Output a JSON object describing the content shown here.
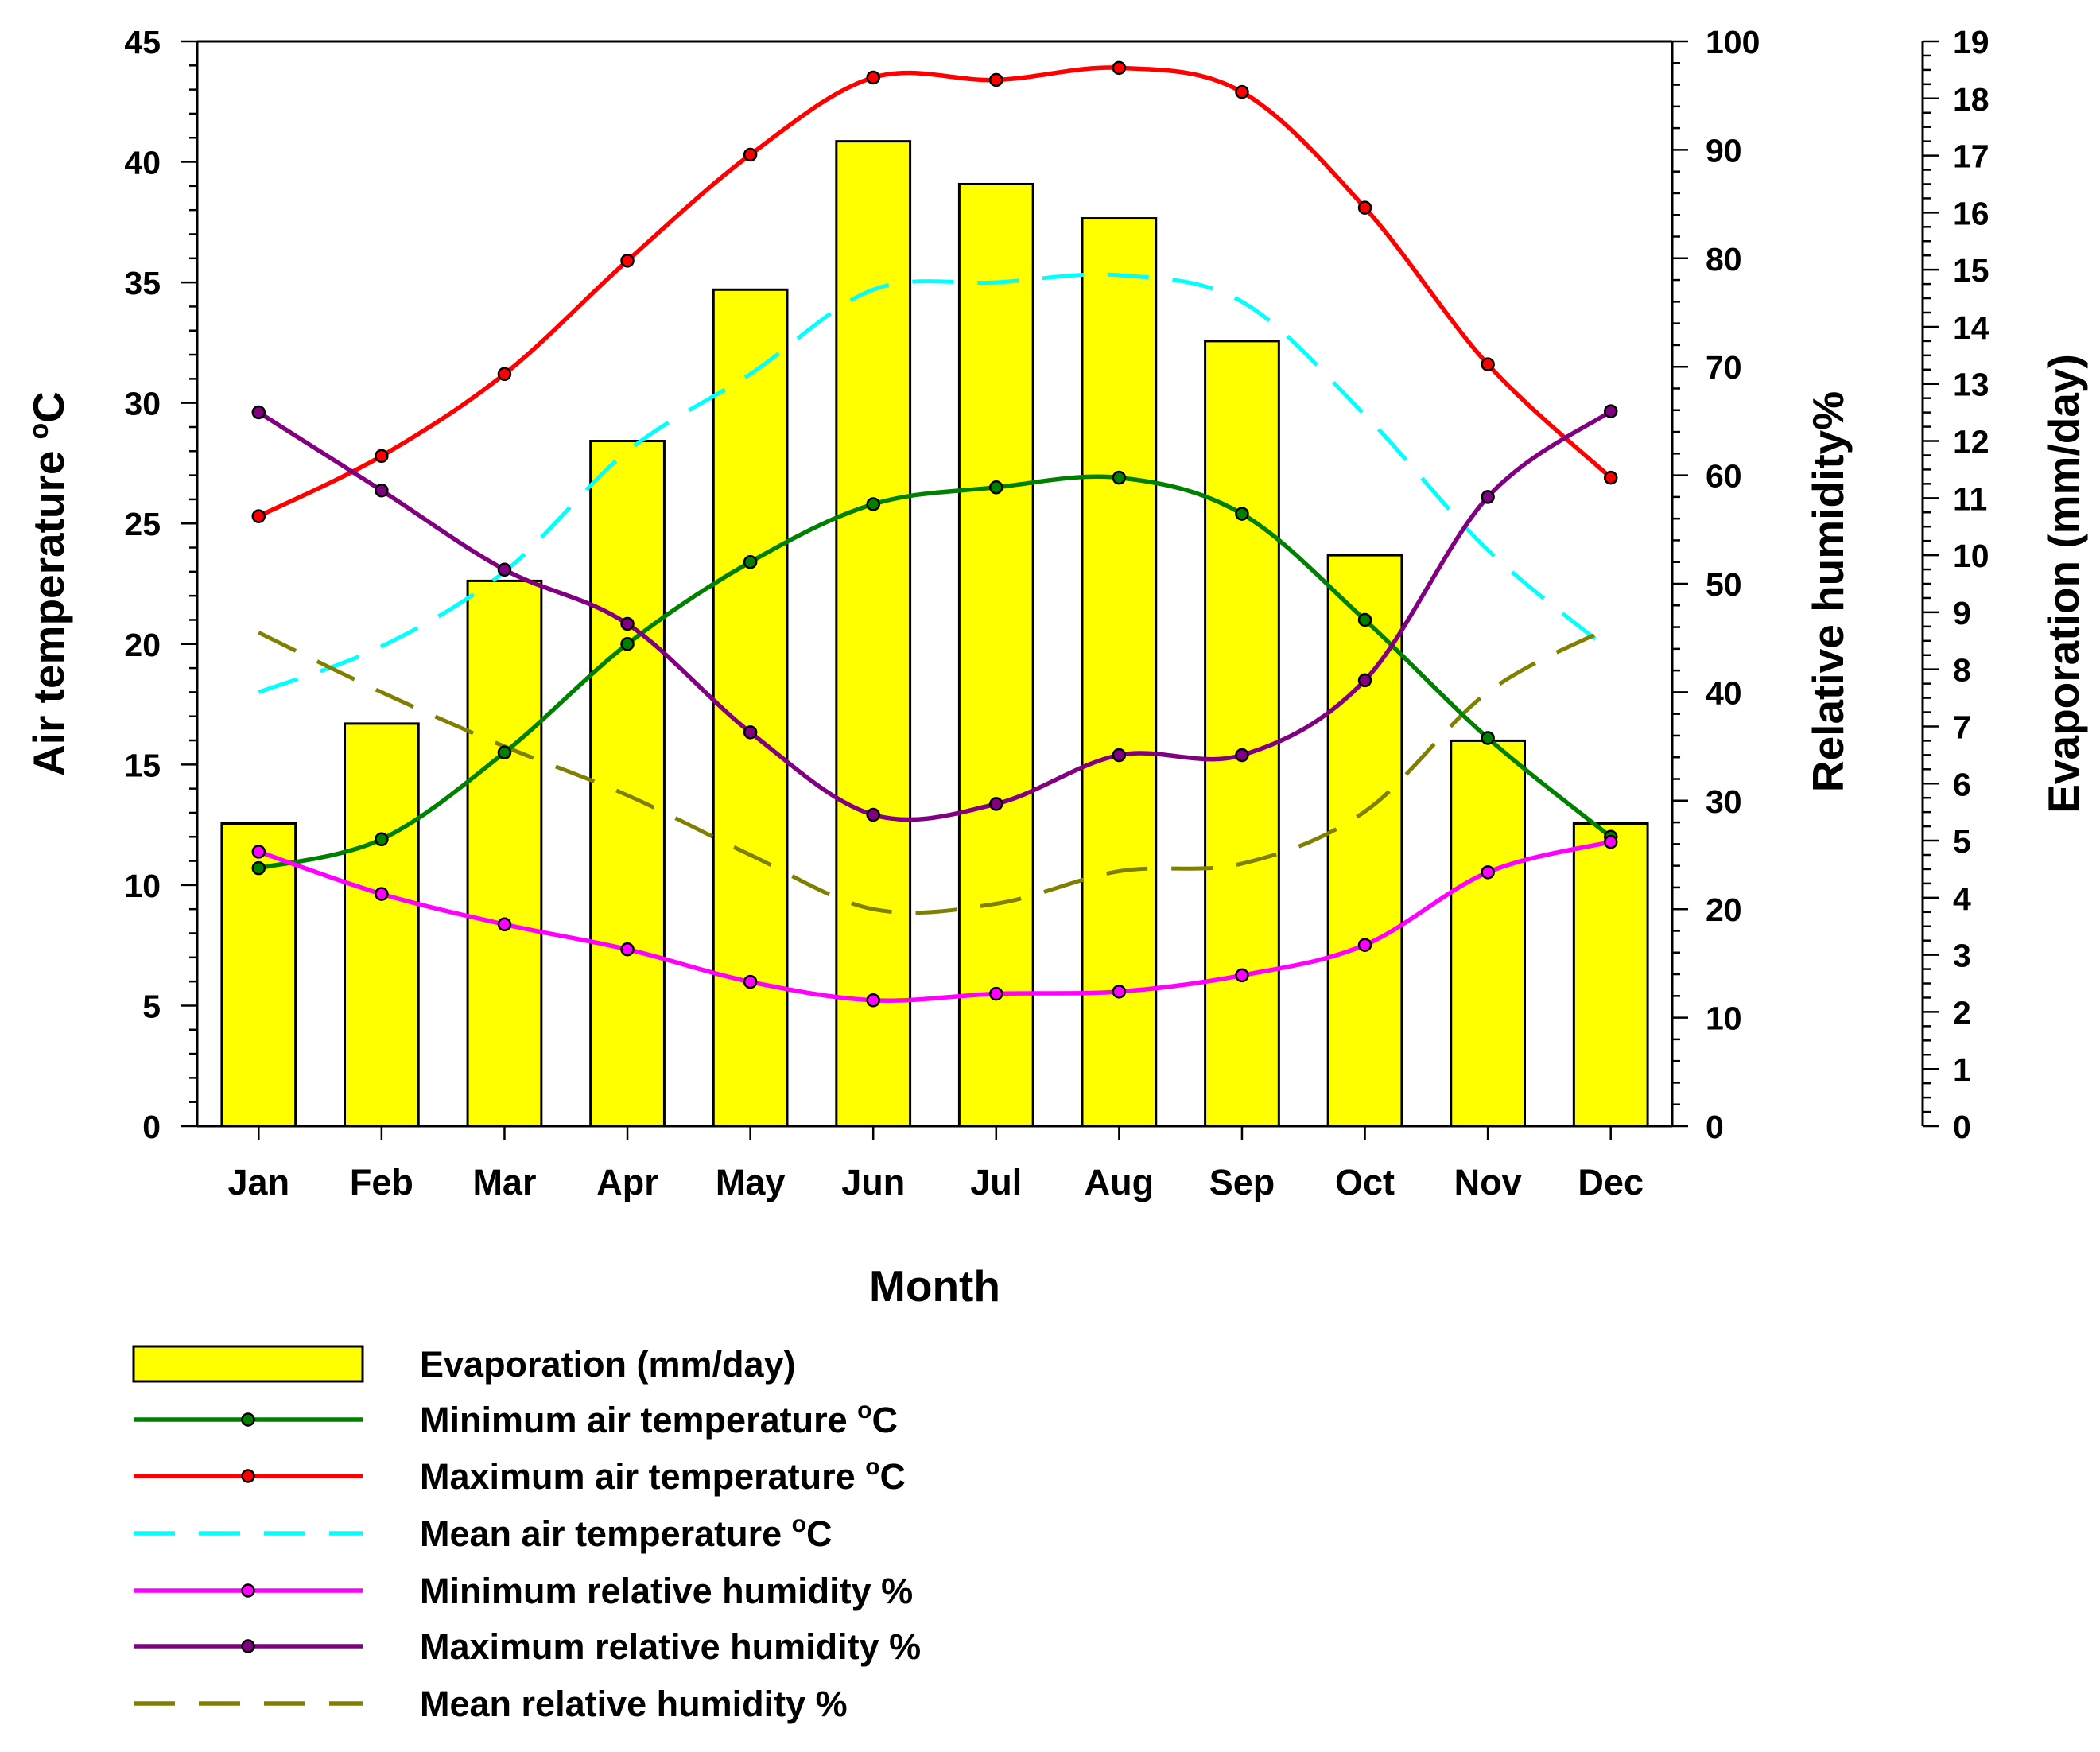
{
  "chart_data": {
    "type": "bar+line",
    "categories": [
      "Jan",
      "Feb",
      "Mar",
      "Apr",
      "May",
      "Jun",
      "Jul",
      "Aug",
      "Sep",
      "Oct",
      "Nov",
      "Dec"
    ],
    "xlabel": "Month",
    "axes": {
      "left": {
        "label": "Air temperature",
        "unit_sup": "o",
        "unit": "C",
        "ylim": [
          0,
          45
        ],
        "major_step": 5
      },
      "right1": {
        "label": "Relative humidity%",
        "ylim": [
          0,
          100
        ],
        "major_step": 10
      },
      "right2": {
        "label": "Evaporation (mm/day)",
        "ylim": [
          0,
          19
        ],
        "major_step": 1
      }
    },
    "series": [
      {
        "key": "evap",
        "name": "Evaporation (mm/day)",
        "type": "bar",
        "axis": "right2",
        "color": "#FFFF00",
        "values": [
          5.3,
          7.05,
          9.55,
          12.0,
          14.65,
          17.25,
          16.5,
          15.9,
          13.75,
          10.0,
          6.75,
          5.3
        ]
      },
      {
        "key": "tmin",
        "name": "Minimum air temperature ",
        "sup": "o",
        "unit": "C",
        "type": "line",
        "axis": "left",
        "color": "#008000",
        "marker": true,
        "dashed": false,
        "values": [
          10.7,
          11.9,
          15.5,
          20.0,
          23.4,
          25.8,
          26.5,
          26.9,
          25.4,
          21.0,
          16.1,
          12.0
        ]
      },
      {
        "key": "tmax",
        "name": "Maximum air temperature ",
        "sup": "o",
        "unit": "C",
        "type": "line",
        "axis": "left",
        "color": "#FF0000",
        "marker": true,
        "dashed": false,
        "values": [
          25.3,
          27.8,
          31.2,
          35.9,
          40.3,
          43.5,
          43.4,
          43.9,
          42.9,
          38.1,
          31.6,
          26.9
        ]
      },
      {
        "key": "tmean",
        "name": "Mean air temperature ",
        "sup": "o",
        "unit": "C",
        "type": "line",
        "axis": "left",
        "color": "#00FFFF",
        "marker": false,
        "dashed": true,
        "values": [
          18.0,
          19.9,
          23.0,
          28.0,
          31.2,
          34.7,
          35.0,
          35.3,
          34.2,
          29.5,
          23.9,
          19.7
        ]
      },
      {
        "key": "rhmin",
        "name": "Minimum relative humidity %",
        "type": "line",
        "axis": "right1",
        "color": "#FF00FF",
        "marker": true,
        "dashed": false,
        "values": [
          25.3,
          21.4,
          18.6,
          16.3,
          13.3,
          11.6,
          12.2,
          12.4,
          13.9,
          16.7,
          23.4,
          26.2
        ]
      },
      {
        "key": "rhmax",
        "name": "Maximum relative humidity %",
        "type": "line",
        "axis": "right1",
        "color": "#800080",
        "marker": true,
        "dashed": false,
        "values": [
          65.8,
          58.6,
          51.3,
          46.3,
          36.3,
          28.7,
          29.7,
          34.2,
          34.2,
          41.1,
          58.0,
          65.9
        ]
      },
      {
        "key": "rhmean",
        "name": "Mean relative humidity %",
        "type": "line",
        "axis": "right1",
        "color": "#808000",
        "marker": false,
        "dashed": true,
        "values": [
          45.5,
          40.0,
          35.0,
          30.5,
          25.0,
          20.0,
          20.5,
          23.5,
          24.2,
          29.0,
          40.0,
          46.0
        ]
      }
    ],
    "legend": {
      "position": "bottom-left"
    }
  }
}
